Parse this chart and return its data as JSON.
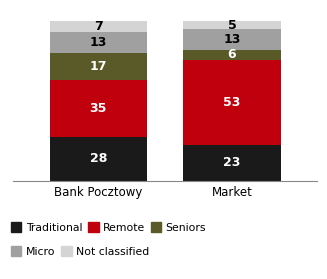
{
  "categories": [
    "Bank Pocztowy",
    "Market"
  ],
  "series": {
    "Traditional": [
      28,
      23
    ],
    "Remote": [
      35,
      53
    ],
    "Seniors": [
      17,
      6
    ],
    "Micro": [
      13,
      13
    ],
    "Not classified": [
      7,
      5
    ]
  },
  "colors": {
    "Traditional": "#1a1a1a",
    "Remote": "#c0000c",
    "Seniors": "#5a5a28",
    "Micro": "#a0a0a0",
    "Not classified": "#d4d4d4"
  },
  "ylim": [
    0,
    108
  ],
  "bar_width": 0.32,
  "label_color_white": "#ffffff",
  "label_color_black": "#000000",
  "legend_row1": [
    "Traditional",
    "Remote",
    "Seniors"
  ],
  "legend_row2": [
    "Micro",
    "Not classified"
  ],
  "layer_order": [
    "Traditional",
    "Remote",
    "Seniors",
    "Micro",
    "Not classified"
  ],
  "white_labels": [
    "Traditional",
    "Remote",
    "Seniors"
  ],
  "fontsize_bar_label": 9,
  "fontsize_tick": 8.5
}
